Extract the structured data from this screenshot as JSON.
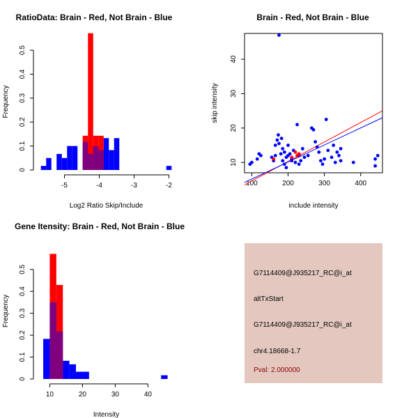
{
  "colors": {
    "red": "#ff0000",
    "blue": "#0000ff",
    "overlap": "#7f007f",
    "panel": "#e4c8c0",
    "pval": "#8b0000"
  },
  "chart_data": [
    {
      "id": "ratio",
      "type": "bar",
      "title": "RatioData: Brain - Red, Not Brain - Blue",
      "xlabel": "Log2 Ratio Skip/Include",
      "ylabel": "Frequency",
      "xlim": [
        -5.75,
        -1.85
      ],
      "ylim": [
        0,
        0.57
      ],
      "xticks": [
        -5,
        -4,
        -3,
        -2
      ],
      "yticks": [
        0.0,
        0.1,
        0.2,
        0.3,
        0.4,
        0.5
      ],
      "bin_width": 0.15,
      "series": [
        {
          "name": "Not Brain",
          "color": "blue",
          "bins": [
            [
              -5.6,
              0.017
            ],
            [
              -5.45,
              0.05
            ],
            [
              -5.3,
              0.0
            ],
            [
              -5.15,
              0.067
            ],
            [
              -5.0,
              0.05
            ],
            [
              -4.85,
              0.1
            ],
            [
              -4.7,
              0.1
            ],
            [
              -4.55,
              0.0
            ],
            [
              -4.4,
              0.117
            ],
            [
              -4.25,
              0.067
            ],
            [
              -4.1,
              0.1
            ],
            [
              -3.95,
              0.083
            ],
            [
              -3.8,
              0.133
            ],
            [
              -3.65,
              0.083
            ],
            [
              -3.5,
              0.133
            ],
            [
              -3.35,
              0.0
            ],
            [
              -2.0,
              0.017
            ]
          ]
        },
        {
          "name": "Brain",
          "color": "red",
          "bins": [
            [
              -4.4,
              0.143
            ],
            [
              -4.25,
              0.571
            ],
            [
              -4.1,
              0.143
            ],
            [
              -3.95,
              0.143
            ]
          ]
        }
      ]
    },
    {
      "id": "scatter",
      "type": "scatter",
      "title": "Brain - Red, Not Brain - Blue",
      "xlabel": "include intensity",
      "ylabel": "skip intensity",
      "xlim": [
        80,
        460
      ],
      "ylim": [
        7,
        47.5
      ],
      "xticks": [
        100,
        200,
        300,
        400
      ],
      "yticks": [
        10,
        20,
        30,
        40
      ],
      "series": [
        {
          "name": "Not Brain",
          "color": "blue",
          "points": [
            [
              95,
              9.5
            ],
            [
              100,
              10
            ],
            [
              115,
              11
            ],
            [
              120,
              12.5
            ],
            [
              125,
              12
            ],
            [
              155,
              11.5
            ],
            [
              160,
              10.5
            ],
            [
              165,
              12
            ],
            [
              165,
              15
            ],
            [
              170,
              16.5
            ],
            [
              173,
              18
            ],
            [
              175,
              47
            ],
            [
              175,
              15.5
            ],
            [
              180,
              12.5
            ],
            [
              182,
              17
            ],
            [
              185,
              14
            ],
            [
              185,
              10.5
            ],
            [
              190,
              9.5
            ],
            [
              190,
              13
            ],
            [
              195,
              11.5
            ],
            [
              195,
              8.5
            ],
            [
              200,
              15
            ],
            [
              200,
              12
            ],
            [
              205,
              12.5
            ],
            [
              210,
              11
            ],
            [
              210,
              10.5
            ],
            [
              215,
              13.5
            ],
            [
              220,
              10
            ],
            [
              225,
              21
            ],
            [
              230,
              12
            ],
            [
              230,
              9.5
            ],
            [
              235,
              10.5
            ],
            [
              240,
              14
            ],
            [
              245,
              11.5
            ],
            [
              255,
              12
            ],
            [
              265,
              20
            ],
            [
              270,
              19.5
            ],
            [
              275,
              16
            ],
            [
              280,
              14.5
            ],
            [
              285,
              13
            ],
            [
              290,
              10.5
            ],
            [
              295,
              9.5
            ],
            [
              300,
              11
            ],
            [
              305,
              22.5
            ],
            [
              310,
              13.5
            ],
            [
              320,
              11.5
            ],
            [
              325,
              15
            ],
            [
              330,
              10
            ],
            [
              335,
              13
            ],
            [
              340,
              12
            ],
            [
              345,
              10.5
            ],
            [
              345,
              14
            ],
            [
              380,
              10
            ],
            [
              440,
              9
            ],
            [
              440,
              11
            ],
            [
              447,
              12
            ]
          ]
        },
        {
          "name": "Brain",
          "color": "red",
          "points": [
            [
              160,
              11
            ],
            [
              210,
              11.5
            ],
            [
              220,
              13
            ],
            [
              225,
              12
            ],
            [
              230,
              12.5
            ]
          ]
        }
      ],
      "fit_lines": [
        {
          "color": "red",
          "from": [
            80,
            3.5
          ],
          "to": [
            460,
            25
          ]
        },
        {
          "color": "blue",
          "from": [
            80,
            4.2
          ],
          "to": [
            460,
            23
          ]
        }
      ]
    },
    {
      "id": "intensity",
      "type": "bar",
      "title": "Gene Itensity: Brain - Red, Not Brain - Blue",
      "xlabel": "Intensity",
      "ylabel": "Frequency",
      "xlim": [
        6.5,
        48
      ],
      "ylim": [
        0,
        0.62
      ],
      "xticks": [
        10,
        20,
        30,
        40
      ],
      "yticks": [
        0.0,
        0.1,
        0.2,
        0.3,
        0.4,
        0.5
      ],
      "bin_width": 2,
      "series": [
        {
          "name": "Not Brain",
          "color": "blue",
          "bins": [
            [
              9,
              0.183
            ],
            [
              11,
              0.35
            ],
            [
              13,
              0.217
            ],
            [
              15,
              0.083
            ],
            [
              17,
              0.067
            ],
            [
              19,
              0.033
            ],
            [
              21,
              0.033
            ],
            [
              23,
              0.0
            ],
            [
              45,
              0.017
            ]
          ]
        },
        {
          "name": "Brain",
          "color": "red",
          "bins": [
            [
              11,
              0.571
            ],
            [
              13,
              0.429
            ]
          ]
        }
      ]
    }
  ],
  "info": {
    "probe": "G7114409@J935217_RC@i_at",
    "event": "altTxStart",
    "probe2": "G7114409@J935217_RC@i_at",
    "location": "chr4.18668-1.7",
    "pval": "Pval: 2.000000"
  }
}
